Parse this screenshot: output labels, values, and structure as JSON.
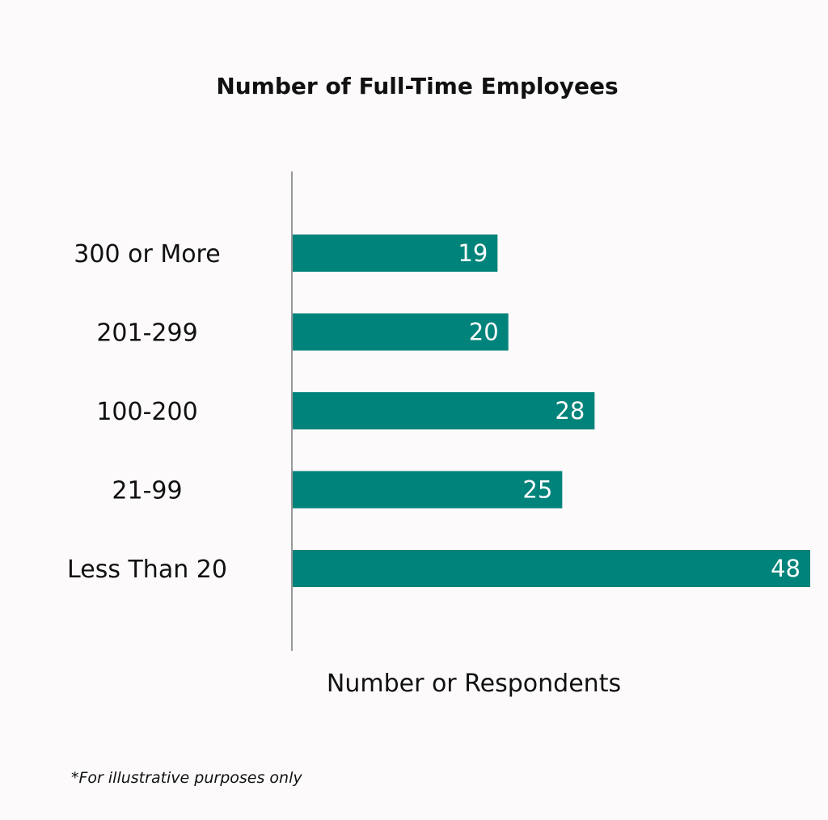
{
  "chart_data": {
    "type": "bar",
    "orientation": "horizontal",
    "title": "Number of Full-Time Employees",
    "categories": [
      "300 or More",
      "201-299",
      "100-200",
      "21-99",
      "Less Than 20"
    ],
    "values": [
      19,
      20,
      28,
      25,
      48
    ],
    "xlabel": "Number or Respondents",
    "ylabel": "",
    "xlim": [
      0,
      48
    ],
    "grid": false,
    "data_labels": true,
    "bar_color": "#00837a",
    "value_label_color": "#ffffff"
  },
  "footnote": "*For illustrative purposes only"
}
